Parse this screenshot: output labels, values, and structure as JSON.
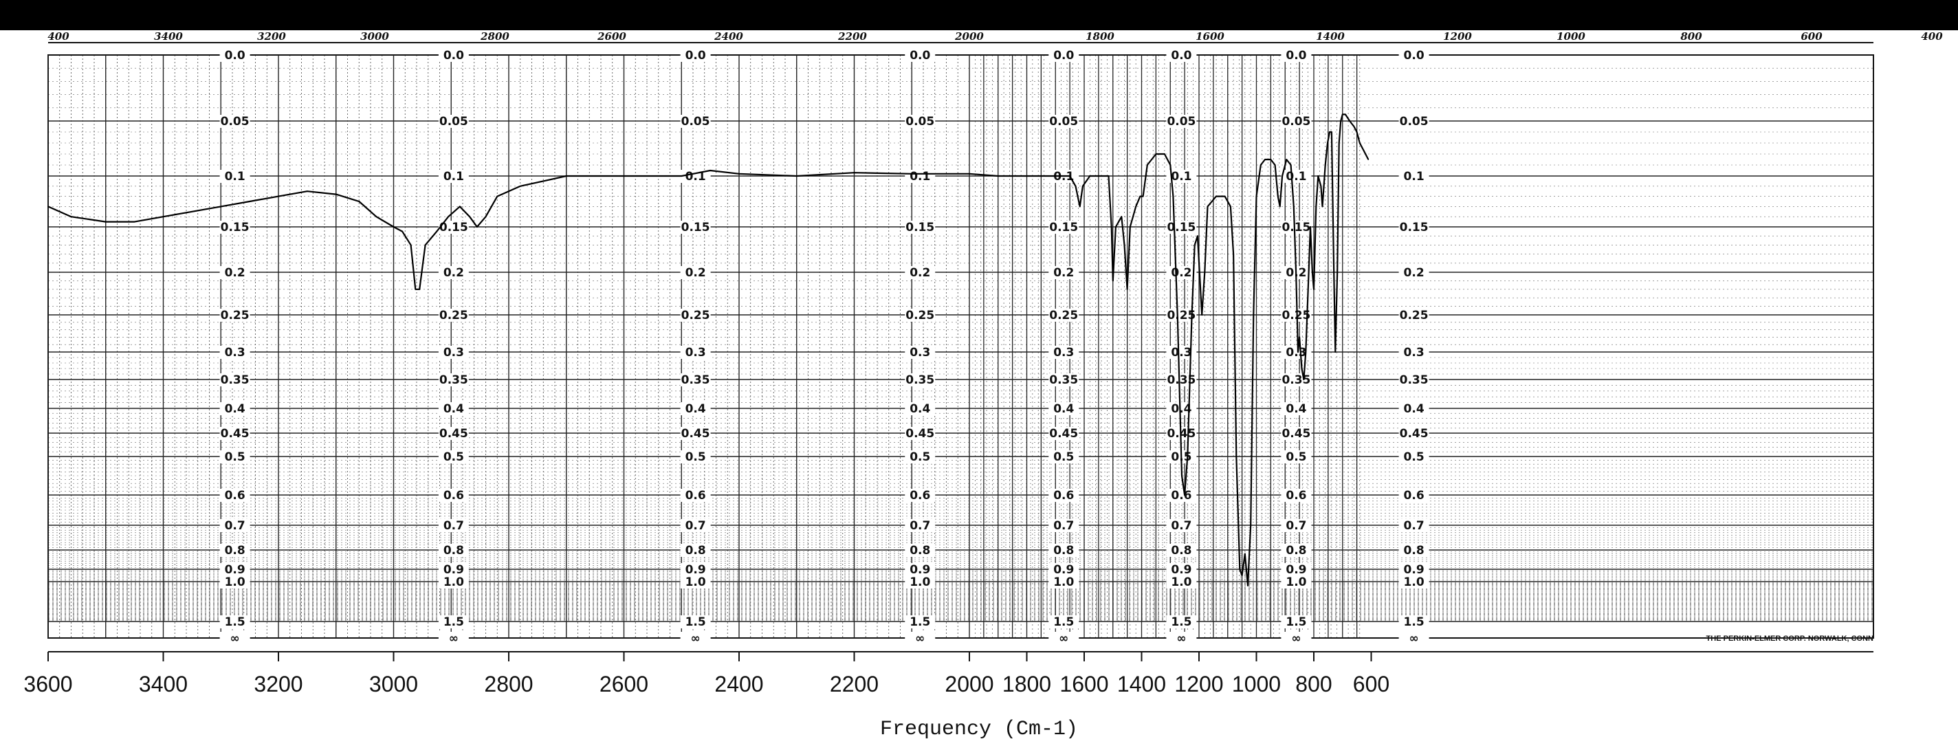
{
  "chart_data": {
    "type": "line",
    "title": "",
    "xlabel": "Frequency (Cm-1)",
    "ylabel": "",
    "x_ticks": [
      3600,
      3400,
      3200,
      3000,
      2800,
      2600,
      2400,
      2200,
      2000,
      1800,
      1600,
      1400,
      1200,
      1000,
      800,
      600
    ],
    "xlim": [
      3600,
      400
    ],
    "xlim_note_unused": null,
    "absorbance_scale": [
      "0.0",
      "0.05",
      "0.1",
      "0.15",
      "0.2",
      "0.25",
      "0.3",
      "0.35",
      "0.4",
      "0.45",
      "0.5",
      "0.6",
      "0.7",
      "0.8",
      "0.9",
      "1.0",
      "1.5",
      "∞"
    ],
    "absorbance_scale_positions_wavenumber": [
      3290,
      2910,
      2490,
      2100,
      1700,
      1290,
      890,
      480
    ],
    "top_scale_handwritten": [
      "400",
      "3400",
      "3200",
      "3000",
      "2800",
      "2600",
      "2400",
      "2200",
      "2000",
      "1800",
      "1600",
      "1400",
      "1200",
      "1000",
      "800",
      "600",
      "400"
    ],
    "credit": "THE PERKIN-ELMER CORP. NORWALK, CONN",
    "grid": true,
    "series": [
      {
        "x": [
          3600,
          3560,
          3500,
          3450,
          3400,
          3350,
          3300,
          3250,
          3200,
          3150,
          3100,
          3060,
          3030,
          3000,
          2985,
          2970,
          2962,
          2955,
          2945,
          2925,
          2905,
          2885,
          2868,
          2855,
          2840,
          2820,
          2780,
          2740,
          2700,
          2650,
          2600,
          2550,
          2500,
          2450,
          2400,
          2300,
          2200,
          2100,
          2000,
          1900,
          1800,
          1700,
          1650,
          1630,
          1615,
          1605,
          1580,
          1540,
          1515,
          1505,
          1500,
          1490,
          1470,
          1460,
          1450,
          1440,
          1420,
          1405,
          1395,
          1380,
          1350,
          1320,
          1300,
          1290,
          1275,
          1260,
          1250,
          1240,
          1225,
          1215,
          1205,
          1198,
          1190,
          1180,
          1170,
          1140,
          1110,
          1090,
          1080,
          1070,
          1058,
          1050,
          1040,
          1030,
          1020,
          1010,
          1000,
          985,
          970,
          950,
          935,
          925,
          918,
          910,
          895,
          880,
          870,
          862,
          855,
          850,
          842,
          835,
          828,
          820,
          812,
          805,
          800,
          792,
          785,
          775,
          770,
          765,
          760,
          752,
          745,
          738,
          730,
          725,
          718,
          712,
          706,
          700,
          690,
          675,
          660,
          650,
          640,
          630,
          620,
          610
        ],
        "y": [
          0.13,
          0.14,
          0.145,
          0.145,
          0.14,
          0.135,
          0.13,
          0.125,
          0.12,
          0.115,
          0.118,
          0.125,
          0.14,
          0.15,
          0.155,
          0.17,
          0.22,
          0.22,
          0.17,
          0.155,
          0.14,
          0.13,
          0.14,
          0.15,
          0.14,
          0.12,
          0.11,
          0.105,
          0.1,
          0.1,
          0.1,
          0.1,
          0.1,
          0.095,
          0.098,
          0.1,
          0.097,
          0.098,
          0.098,
          0.1,
          0.1,
          0.1,
          0.1,
          0.11,
          0.13,
          0.11,
          0.1,
          0.1,
          0.1,
          0.15,
          0.21,
          0.15,
          0.14,
          0.17,
          0.22,
          0.15,
          0.13,
          0.12,
          0.12,
          0.09,
          0.08,
          0.08,
          0.09,
          0.12,
          0.25,
          0.55,
          0.6,
          0.5,
          0.25,
          0.17,
          0.16,
          0.2,
          0.25,
          0.2,
          0.13,
          0.12,
          0.12,
          0.13,
          0.18,
          0.5,
          0.9,
          0.95,
          0.82,
          1.05,
          0.7,
          0.25,
          0.12,
          0.09,
          0.085,
          0.085,
          0.09,
          0.12,
          0.13,
          0.1,
          0.085,
          0.09,
          0.13,
          0.2,
          0.3,
          0.28,
          0.33,
          0.35,
          0.3,
          0.22,
          0.15,
          0.2,
          0.22,
          0.13,
          0.1,
          0.11,
          0.13,
          0.11,
          0.09,
          0.07,
          0.06,
          0.06,
          0.2,
          0.3,
          0.2,
          0.07,
          0.05,
          0.045,
          0.045,
          0.05,
          0.055,
          0.06,
          0.07,
          0.075,
          0.08,
          0.085
        ]
      }
    ]
  }
}
